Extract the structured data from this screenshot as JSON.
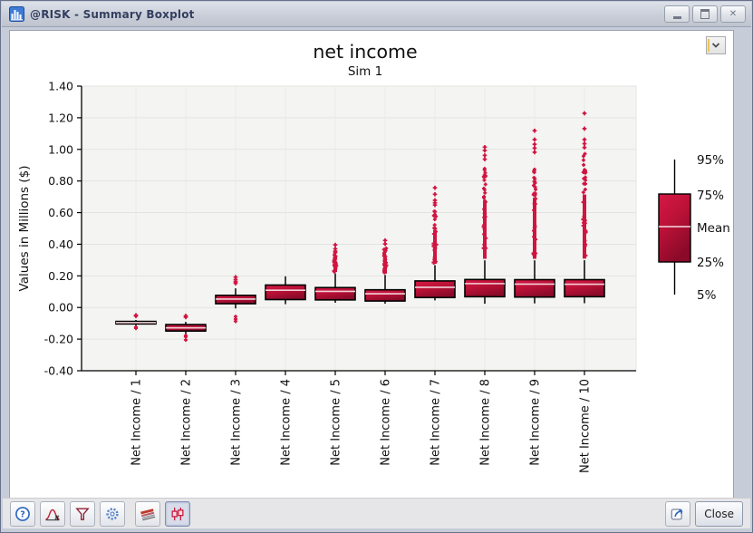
{
  "window": {
    "title": "@RISK - Summary Boxplot",
    "icon": "app-boxchart-icon",
    "controls": [
      {
        "name": "minimize"
      },
      {
        "name": "maximize"
      },
      {
        "name": "close"
      }
    ]
  },
  "dropdown": {
    "icon": "chevron-down-icon"
  },
  "chart_data": {
    "type": "boxplot",
    "title": "net income",
    "subtitle": "Sim 1",
    "ylabel": "Values in Millions ($)",
    "ylim": [
      -0.4,
      1.4
    ],
    "yticks": [
      1.4,
      1.2,
      1.0,
      0.8,
      0.6,
      0.4,
      0.2,
      0.0,
      -0.2,
      -0.4
    ],
    "ytick_labels": [
      "1.40",
      "1.20",
      "1.00",
      "0.80",
      "0.60",
      "0.40",
      "0.20",
      "0.00",
      "-0.20",
      "-0.40"
    ],
    "categories": [
      "Net Income / 1",
      "Net Income / 2",
      "Net Income / 3",
      "Net Income / 4",
      "Net Income / 5",
      "Net Income / 6",
      "Net Income / 7",
      "Net Income / 8",
      "Net Income / 9",
      "Net Income / 10"
    ],
    "grid": true,
    "legend": {
      "position": "right",
      "labels": [
        "95%",
        "75%",
        "Mean",
        "25%",
        "5%"
      ]
    },
    "colors": {
      "box_top": "#d51945",
      "box_mid": "#be1238",
      "box_bottom": "#8c0a29",
      "outline": "#000000",
      "outlier": "#d01541",
      "mean_line": "#f4dce2",
      "plot_bg": "#f4f4f2",
      "grid_line": "#e3e3e1",
      "axis": "#000000"
    },
    "boxes": [
      {
        "p5": -0.113,
        "p25": -0.104,
        "mean": -0.096,
        "p75": -0.088,
        "p95": -0.079,
        "outliers_low": [
          -0.124,
          -0.131
        ],
        "outliers_high": [
          -0.054,
          -0.049
        ],
        "outlier_column_high": null
      },
      {
        "p5": -0.166,
        "p25": -0.149,
        "mean": -0.129,
        "p75": -0.108,
        "p95": -0.091,
        "outliers_low": [
          -0.177,
          -0.186,
          -0.205
        ],
        "outliers_high": [
          -0.061,
          -0.053
        ],
        "outlier_column_high": null
      },
      {
        "p5": -0.006,
        "p25": 0.024,
        "mean": 0.053,
        "p75": 0.077,
        "p95": 0.121,
        "outliers_low": [
          -0.058,
          -0.073,
          -0.087
        ],
        "outliers_high": [
          0.153,
          0.163,
          0.176,
          0.192
        ],
        "outlier_column_high": null
      },
      {
        "p5": 0.021,
        "p25": 0.05,
        "mean": 0.109,
        "p75": 0.142,
        "p95": 0.197,
        "outliers_low": [],
        "outliers_high": [],
        "outlier_column_high": null
      },
      {
        "p5": 0.03,
        "p25": 0.048,
        "mean": 0.102,
        "p75": 0.126,
        "p95": 0.216,
        "outliers_low": [],
        "outliers_high": [
          0.347,
          0.356,
          0.371,
          0.396
        ],
        "outlier_column_high": [
          0.224,
          0.338
        ]
      },
      {
        "p5": 0.024,
        "p25": 0.041,
        "mean": 0.087,
        "p75": 0.112,
        "p95": 0.206,
        "outliers_low": [],
        "outliers_high": [
          0.402,
          0.424
        ],
        "outlier_column_high": [
          0.214,
          0.382
        ]
      },
      {
        "p5": 0.045,
        "p25": 0.063,
        "mean": 0.128,
        "p75": 0.168,
        "p95": 0.268,
        "outliers_low": [],
        "outliers_high": [
          0.648,
          0.662,
          0.678,
          0.716,
          0.757
        ],
        "outlier_column_high": [
          0.276,
          0.632
        ]
      },
      {
        "p5": 0.024,
        "p25": 0.068,
        "mean": 0.151,
        "p75": 0.177,
        "p95": 0.298,
        "outliers_low": [],
        "outliers_high": [
          0.938,
          0.962,
          0.993,
          1.014
        ],
        "outlier_column_high": [
          0.308,
          0.912
        ]
      },
      {
        "p5": 0.026,
        "p25": 0.066,
        "mean": 0.148,
        "p75": 0.176,
        "p95": 0.298,
        "outliers_low": [],
        "outliers_high": [
          0.982,
          1.008,
          1.032,
          1.062,
          1.118
        ],
        "outlier_column_high": [
          0.308,
          0.952
        ]
      },
      {
        "p5": 0.027,
        "p25": 0.068,
        "mean": 0.147,
        "p75": 0.176,
        "p95": 0.299,
        "outliers_low": [],
        "outliers_high": [
          1.012,
          1.036,
          1.062,
          1.131,
          1.228
        ],
        "outlier_column_high": [
          0.309,
          0.985
        ]
      }
    ]
  },
  "toolbar": {
    "left_buttons": [
      {
        "name": "help",
        "icon": "help-icon"
      },
      {
        "name": "define-distribution",
        "icon": "distribution-icon"
      },
      {
        "name": "filter",
        "icon": "filter-icon"
      },
      {
        "name": "graph-options",
        "icon": "gear-icon"
      },
      {
        "name": "overlay",
        "icon": "overlay-curves-icon"
      },
      {
        "name": "boxplot",
        "icon": "boxplot-icon",
        "selected": true
      }
    ],
    "right_buttons": [
      {
        "name": "edit-and-export",
        "icon": "export-icon"
      },
      {
        "name": "close",
        "label": "Close"
      }
    ],
    "close_label": "Close"
  }
}
